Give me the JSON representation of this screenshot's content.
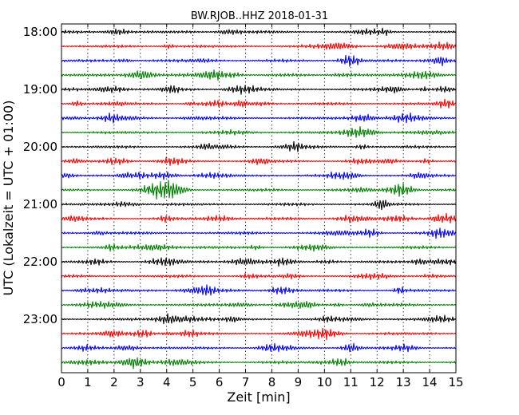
{
  "chart_data": {
    "type": "line",
    "title": "BW.RJOB..HHZ 2018-01-31",
    "xlabel": "Zeit  [min]",
    "ylabel": "UTC (Lokalzeit = UTC + 01:00)",
    "xlim": [
      0,
      15
    ],
    "x_ticks": [
      "0",
      "1",
      "2",
      "3",
      "4",
      "5",
      "6",
      "7",
      "8",
      "9",
      "10",
      "11",
      "12",
      "13",
      "14",
      "15"
    ],
    "y_ticks": [
      "18:00",
      "19:00",
      "20:00",
      "21:00",
      "22:00",
      "23:00"
    ],
    "grid": "vertical dotted",
    "trace_interval_min": 15,
    "trace_colors": [
      "#000000",
      "#ff0000",
      "#0000ff",
      "#008000"
    ],
    "traces": [
      {
        "start": "18:00",
        "color": "#000000"
      },
      {
        "start": "18:15",
        "color": "#ff0000"
      },
      {
        "start": "18:30",
        "color": "#0000ff"
      },
      {
        "start": "18:45",
        "color": "#008000"
      },
      {
        "start": "19:00",
        "color": "#000000"
      },
      {
        "start": "19:15",
        "color": "#ff0000"
      },
      {
        "start": "19:30",
        "color": "#0000ff"
      },
      {
        "start": "19:45",
        "color": "#008000"
      },
      {
        "start": "20:00",
        "color": "#000000"
      },
      {
        "start": "20:15",
        "color": "#ff0000"
      },
      {
        "start": "20:30",
        "color": "#0000ff"
      },
      {
        "start": "20:45",
        "color": "#008000"
      },
      {
        "start": "21:00",
        "color": "#000000"
      },
      {
        "start": "21:15",
        "color": "#ff0000"
      },
      {
        "start": "21:30",
        "color": "#0000ff"
      },
      {
        "start": "21:45",
        "color": "#008000"
      },
      {
        "start": "22:00",
        "color": "#000000"
      },
      {
        "start": "22:15",
        "color": "#ff0000"
      },
      {
        "start": "22:30",
        "color": "#0000ff"
      },
      {
        "start": "22:45",
        "color": "#008000"
      },
      {
        "start": "23:00",
        "color": "#000000"
      },
      {
        "start": "23:15",
        "color": "#ff0000"
      },
      {
        "start": "23:30",
        "color": "#0000ff"
      },
      {
        "start": "23:45",
        "color": "#008000"
      }
    ]
  }
}
